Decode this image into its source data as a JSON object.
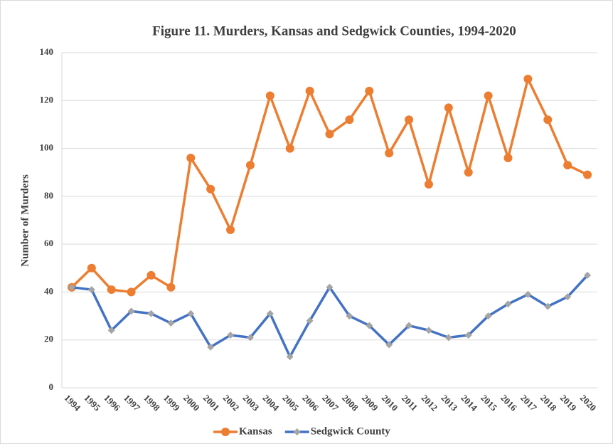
{
  "chart_data": {
    "type": "line",
    "title": "Figure 11.  Murders, Kansas and Sedgwick Counties, 1994-2020",
    "y_label": "Number of Murders",
    "categories": [
      "1994",
      "1995",
      "1996",
      "1997",
      "1998",
      "1999",
      "2000",
      "2001",
      "2002",
      "2003",
      "2004",
      "2005",
      "2006",
      "2007",
      "2008",
      "2009",
      "2010",
      "2011",
      "2012",
      "2013",
      "2014",
      "2015",
      "2016",
      "2017",
      "2018",
      "2019",
      "2020"
    ],
    "series": [
      {
        "name": "Kansas",
        "color": "#ED7D31",
        "marker": "circle",
        "marker_color": "#ED7D31",
        "values": [
          42,
          50,
          41,
          40,
          47,
          42,
          96,
          83,
          66,
          93,
          122,
          100,
          124,
          106,
          112,
          124,
          98,
          112,
          85,
          117,
          90,
          122,
          96,
          129,
          112,
          93,
          89
        ]
      },
      {
        "name": "Sedgwick County",
        "color": "#4472C4",
        "marker": "diamond",
        "marker_color": "#A5A5A5",
        "values": [
          42,
          41,
          24,
          32,
          31,
          27,
          31,
          17,
          22,
          21,
          31,
          13,
          28,
          42,
          30,
          26,
          18,
          26,
          24,
          21,
          22,
          30,
          35,
          39,
          34,
          38,
          47
        ]
      }
    ],
    "ylim": [
      0,
      140
    ],
    "yticks": [
      0,
      20,
      40,
      60,
      80,
      100,
      120,
      140
    ],
    "grid": true,
    "legend": "bottom"
  }
}
